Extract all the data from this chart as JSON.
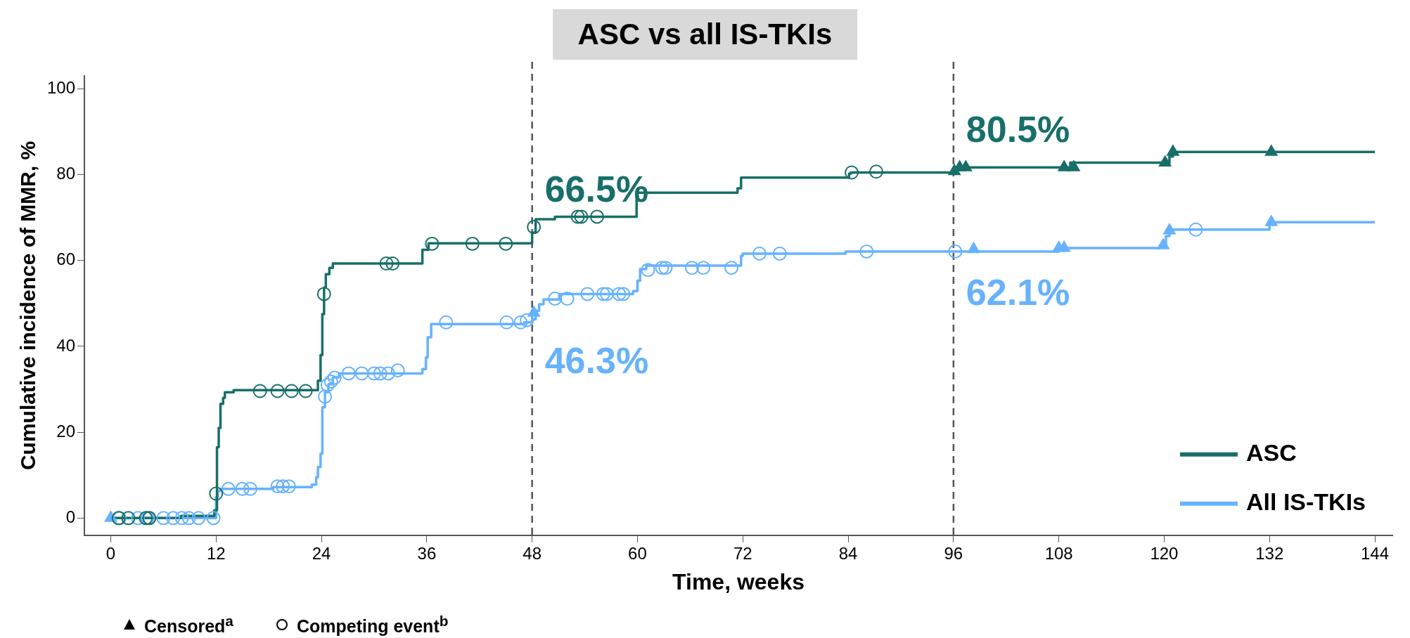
{
  "chart_data": {
    "type": "step",
    "title": "ASC vs all IS-TKIs",
    "xlabel": "Time, weeks",
    "ylabel": "Cumulative incidence of MMR, %",
    "xlim": [
      -3,
      146
    ],
    "xticks": [
      0,
      12,
      24,
      36,
      48,
      60,
      72,
      84,
      96,
      108,
      120,
      132,
      144
    ],
    "ylim": [
      -4,
      103
    ],
    "yticks": [
      0,
      20,
      40,
      60,
      80,
      100
    ],
    "legend": "bottom right",
    "annotations": [
      "Censored$^{a}$",
      "Competing event$^{b}$"
    ],
    "ref_lines": [
      {
        "axis": "x",
        "value": 48,
        "color": "#555555",
        "line_style": "dashed"
      },
      {
        "axis": "x",
        "value": 96,
        "color": "#555555",
        "line_style": "dashed"
      }
    ],
    "series": [
      {
        "name": "ASC",
        "type": "step",
        "color": "#186f69",
        "marker": "none",
        "x": [
          0,
          8,
          11.8,
          12.1,
          12.3,
          12.5,
          12.8,
          13,
          14,
          23.6,
          23.9,
          24.1,
          24.3,
          24.5,
          24.9,
          25.3,
          35.5,
          36.2,
          48,
          48.4,
          50.6,
          59.9,
          71.4,
          71.8,
          84.1,
          84.3,
          96,
          96.5,
          109.3,
          120.6,
          121,
          144
        ],
        "values": [
          0,
          0.5,
          1.8,
          16.5,
          21,
          26.6,
          28,
          29.3,
          29.8,
          32,
          38,
          47.5,
          53.7,
          56.8,
          58.3,
          59.3,
          62.5,
          64,
          66.5,
          69.6,
          70.2,
          75.8,
          76.8,
          79.3,
          80.2,
          80.5,
          80.5,
          81.7,
          82.8,
          84.2,
          85.3,
          85.3
        ],
        "value_labels": [
          null,
          null,
          null,
          null,
          null,
          null,
          null,
          null,
          null,
          null,
          null,
          null,
          null,
          null,
          null,
          null,
          null,
          null,
          "66.5%",
          null,
          null,
          null,
          null,
          null,
          null,
          null,
          "80.5%",
          null,
          null,
          null,
          null,
          null
        ]
      },
      {
        "name": "All IS-TKIs",
        "type": "step",
        "color": "#66b2ff",
        "marker": "none",
        "x": [
          0,
          12,
          12.2,
          12.5,
          18.5,
          22.9,
          23.4,
          23.6,
          23.9,
          24.1,
          24.4,
          24.8,
          25.3,
          26,
          35.5,
          35.9,
          36.1,
          36.5,
          47.1,
          48,
          48.4,
          48.8,
          49.3,
          51.1,
          59.5,
          60,
          60.3,
          61,
          71.8,
          72,
          83.7,
          96,
          108,
          119.5,
          120.2,
          120.6,
          132,
          144
        ],
        "values": [
          0,
          4.9,
          6.3,
          6.8,
          7.2,
          7.8,
          9.5,
          11.9,
          15,
          25.8,
          29.3,
          31.2,
          32.8,
          33.7,
          34.7,
          37.4,
          42.1,
          45.2,
          45.6,
          46.3,
          48.3,
          49.8,
          50.9,
          52.2,
          52.9,
          55.3,
          58,
          58.8,
          61.1,
          61.6,
          62.1,
          62.1,
          62.9,
          63.5,
          65.7,
          67.2,
          68.9,
          68.9
        ],
        "value_labels": [
          null,
          null,
          null,
          null,
          null,
          null,
          null,
          null,
          null,
          null,
          null,
          null,
          null,
          null,
          null,
          null,
          null,
          null,
          null,
          "46.3%",
          null,
          null,
          null,
          null,
          null,
          null,
          null,
          null,
          null,
          null,
          null,
          "62.1%",
          null,
          null,
          null,
          null,
          null,
          null
        ]
      },
      {
        "type": "scatter",
        "color": "#186f69",
        "marker": "circle",
        "x": [
          0.9,
          2,
          4,
          4.4,
          12,
          17,
          19,
          20.6,
          22.2,
          24.3,
          31.4,
          32.1,
          36.6,
          41.2,
          45,
          48.2,
          53.2,
          53.6,
          55.4,
          84.4,
          87.2
        ],
        "values": [
          0,
          0,
          0,
          0,
          5.7,
          29.6,
          29.6,
          29.6,
          29.6,
          52.2,
          59.3,
          59.3,
          63.9,
          63.9,
          63.9,
          67.8,
          70.2,
          70.2,
          70.2,
          80.5,
          80.7
        ]
      },
      {
        "type": "scatter",
        "color": "#186f69",
        "marker": "triangle",
        "x": [
          96.1,
          96.7,
          97.4,
          108.6,
          109.7,
          120.1,
          121,
          132.2
        ],
        "values": [
          80.8,
          81.7,
          81.7,
          81.7,
          81.7,
          82.8,
          85.3,
          85.3
        ]
      },
      {
        "type": "scatter",
        "color": "#66b2ff",
        "marker": "circle",
        "x": [
          1,
          3.1,
          4.2,
          6,
          7.1,
          8.1,
          8.9,
          10,
          11.7,
          13.4,
          15,
          15.9,
          19,
          19.6,
          20.3,
          24.4,
          24.7,
          25.1,
          25.5,
          27.1,
          28.6,
          30,
          30.7,
          31.6,
          32.7,
          38.2,
          45.1,
          46.7,
          47.4,
          50.6,
          52,
          54.3,
          56.1,
          56.5,
          57.9,
          58.4,
          61.2,
          62.8,
          63.2,
          66.2,
          67.5,
          70.7,
          73.9,
          76.2,
          86.1,
          96.2,
          123.6
        ],
        "values": [
          0,
          0,
          0,
          0,
          0,
          0,
          0,
          0,
          0,
          6.8,
          6.8,
          6.8,
          7.4,
          7.4,
          7.4,
          28.3,
          31,
          31.8,
          32.7,
          33.7,
          33.7,
          33.7,
          33.7,
          33.7,
          34.4,
          45.6,
          45.6,
          45.6,
          46.1,
          51.1,
          51.1,
          52.2,
          52.2,
          52.2,
          52.2,
          52.2,
          57.8,
          58.3,
          58.3,
          58.3,
          58.3,
          58.3,
          61.6,
          61.6,
          62.1,
          62.1,
          67.2
        ]
      },
      {
        "type": "scatter",
        "color": "#66b2ff",
        "marker": "triangle",
        "x": [
          0,
          48.2,
          98.3,
          108,
          108.6,
          119.9,
          120.6,
          132.2
        ],
        "values": [
          0,
          47.8,
          62.6,
          62.9,
          62.9,
          63.5,
          67,
          68.9
        ]
      }
    ]
  }
}
